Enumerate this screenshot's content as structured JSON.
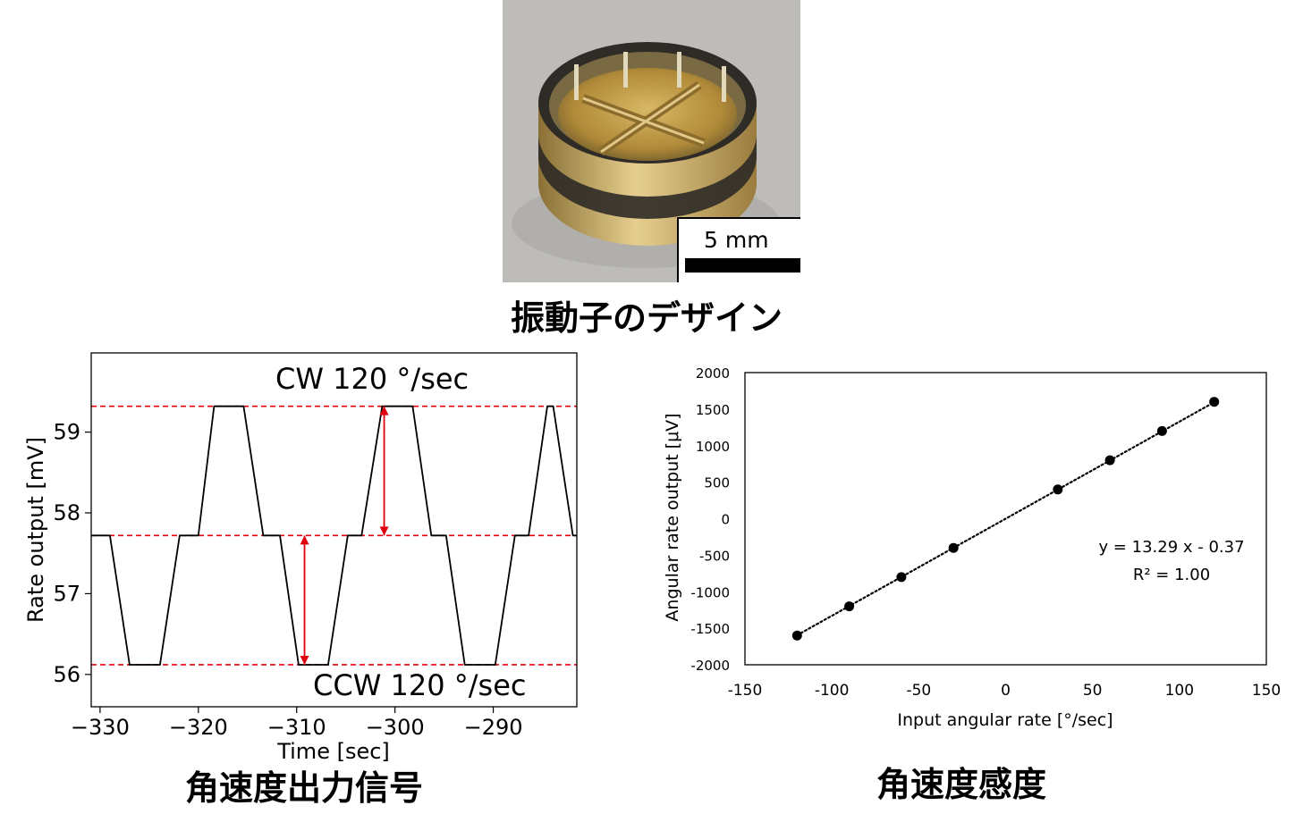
{
  "photo": {
    "scale_label": "5 mm",
    "colors": {
      "background": "#b9b9b7",
      "gold": "#c9a24a",
      "dark": "#3a3632"
    }
  },
  "captions": {
    "top": "振動子のデザイン",
    "left": "角速度出力信号",
    "right": "角速度感度"
  },
  "chart_data": [
    {
      "type": "line",
      "xlabel": "Time [sec]",
      "ylabel": "Rate output [mV]",
      "xlim": [
        -330.9,
        -281.5
      ],
      "ylim": [
        55.6,
        59.98
      ],
      "x_ticks": [
        -330,
        -320,
        -310,
        -300,
        -290
      ],
      "x_tick_labels": [
        "−330",
        "−320",
        "−310",
        "−300",
        "−290"
      ],
      "y_ticks": [
        56,
        57,
        58,
        59
      ],
      "y_tick_labels": [
        "56",
        "57",
        "58",
        "59"
      ],
      "grid": false,
      "series": [
        {
          "color": "#000000",
          "x": [
            -330.9,
            -329.0,
            -327.0,
            -326.4,
            -324.4,
            -323.9,
            -321.9,
            -320.0,
            -318.4,
            -317.9,
            -315.9,
            -315.4,
            -313.4,
            -311.7,
            -309.8,
            -309.3,
            -307.3,
            -306.8,
            -304.8,
            -303.4,
            -301.3,
            -300.7,
            -298.7,
            -298.2,
            -296.3,
            -294.8,
            -292.9,
            -292.3,
            -290.3,
            -289.8,
            -287.8,
            -286.4,
            -284.5,
            -283.9,
            -281.9,
            -281.5
          ],
          "y": [
            57.72,
            57.72,
            56.12,
            56.12,
            56.12,
            56.12,
            57.72,
            57.72,
            59.32,
            59.32,
            59.32,
            59.32,
            57.72,
            57.72,
            56.12,
            56.12,
            56.12,
            56.12,
            57.72,
            57.72,
            59.32,
            59.32,
            59.32,
            59.32,
            57.72,
            57.72,
            56.12,
            56.12,
            56.12,
            56.12,
            57.72,
            57.72,
            59.32,
            59.32,
            57.72,
            57.72
          ]
        }
      ],
      "reference_lines": [
        {
          "y": 59.32,
          "color": "#e0000e",
          "style": "dashed"
        },
        {
          "y": 57.72,
          "color": "#e0000e",
          "style": "dashed"
        },
        {
          "y": 56.12,
          "color": "#e0000e",
          "style": "dashed"
        }
      ],
      "arrows": [
        {
          "x": -301.1,
          "y_from": 57.72,
          "y_to": 59.32,
          "color": "#e0000e"
        },
        {
          "x": -309.2,
          "y_from": 57.72,
          "y_to": 56.12,
          "color": "#e0000e"
        }
      ],
      "annotations": [
        {
          "text": "CW 120 °/sec"
        },
        {
          "text": "CCW 120 °/sec"
        }
      ]
    },
    {
      "type": "scatter",
      "xlabel": "Input angular rate [°/sec]",
      "ylabel": "Angular rate output [μV]",
      "xlim": [
        -150,
        150
      ],
      "ylim": [
        -2000,
        2000
      ],
      "x_ticks": [
        -150,
        -100,
        -50,
        0,
        50,
        100,
        150
      ],
      "x_tick_labels": [
        "-150",
        "-100",
        "-50",
        "0",
        "50",
        "100",
        "150"
      ],
      "y_ticks": [
        -2000,
        -1500,
        -1000,
        -500,
        0,
        500,
        1000,
        1500,
        2000
      ],
      "y_tick_labels": [
        "-2000",
        "-1500",
        "-1000",
        "-500",
        "0",
        "500",
        "1000",
        "1500",
        "2000"
      ],
      "grid": false,
      "series": [
        {
          "color": "#000000",
          "x": [
            -120,
            -90,
            -60,
            -30,
            30,
            60,
            90,
            120
          ],
          "y": [
            -1600,
            -1200,
            -800,
            -400,
            400,
            800,
            1200,
            1600
          ]
        }
      ],
      "trendline": {
        "slope": 13.29,
        "intercept": -0.37,
        "style": "dotted",
        "x_range": [
          -120,
          120
        ]
      },
      "equation": "y = 13.29 x - 0.37",
      "r_squared": "R² = 1.00"
    }
  ]
}
